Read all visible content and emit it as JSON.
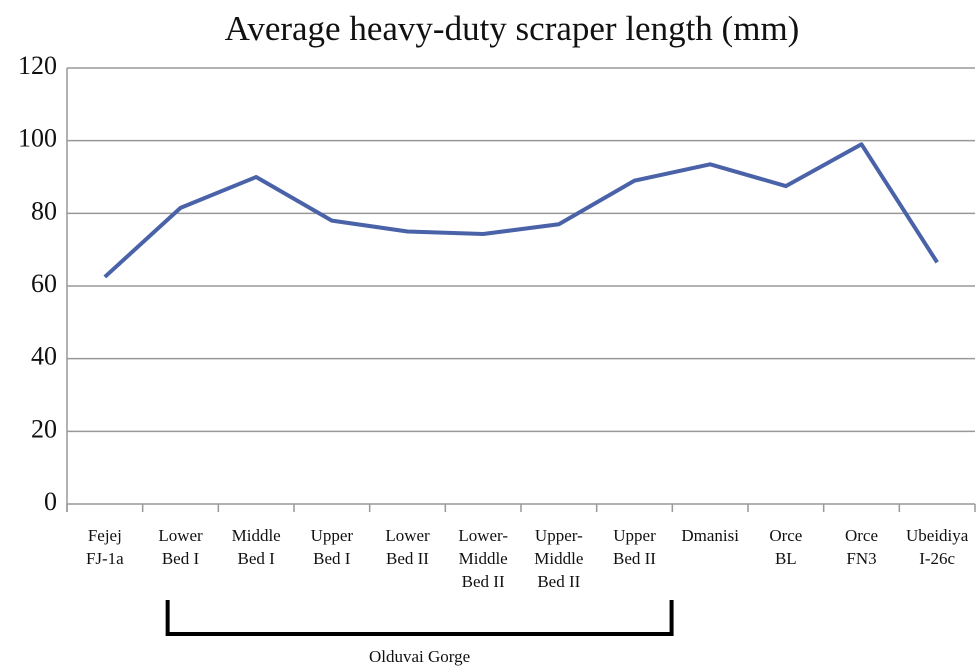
{
  "chart_data": {
    "type": "line",
    "title": "Average heavy-duty scraper length (mm)",
    "categories": [
      [
        "Fejej",
        "FJ-1a"
      ],
      [
        "Lower",
        "Bed I"
      ],
      [
        "Middle",
        "Bed I"
      ],
      [
        "Upper",
        "Bed I"
      ],
      [
        "Lower",
        "Bed II"
      ],
      [
        "Lower-",
        "Middle",
        "Bed II"
      ],
      [
        "Upper-",
        "Middle",
        "Bed II"
      ],
      [
        "Upper",
        "Bed II"
      ],
      [
        "Dmanisi"
      ],
      [
        "Orce",
        "BL"
      ],
      [
        "Orce",
        "FN3"
      ],
      [
        "Ubeidiya",
        "I-26c"
      ]
    ],
    "series": [
      {
        "name": null,
        "color": "#4a62a8",
        "values": [
          62.5,
          81.5,
          90,
          78,
          75,
          74.3,
          77,
          89,
          93.5,
          87.5,
          99,
          66.5
        ]
      }
    ],
    "ylim": [
      0,
      120
    ],
    "yticks": [
      0,
      20,
      40,
      60,
      80,
      100,
      120
    ],
    "grid": true,
    "annotations": [
      "Olduvai Gorge"
    ]
  }
}
